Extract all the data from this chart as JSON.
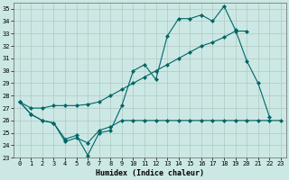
{
  "xlabel": "Humidex (Indice chaleur)",
  "bg_color": "#cce8e4",
  "grid_color": "#b0c8c4",
  "line_color": "#006666",
  "xlim": [
    -0.5,
    23.5
  ],
  "ylim": [
    23,
    35.5
  ],
  "yticks": [
    23,
    24,
    25,
    26,
    27,
    28,
    29,
    30,
    31,
    32,
    33,
    34,
    35
  ],
  "xticks": [
    0,
    1,
    2,
    3,
    4,
    5,
    6,
    7,
    8,
    9,
    10,
    11,
    12,
    13,
    14,
    15,
    16,
    17,
    18,
    19,
    20,
    21,
    22,
    23
  ],
  "series": [
    {
      "x": [
        0,
        1,
        2,
        3,
        4,
        5,
        6,
        7,
        8,
        9,
        10,
        11,
        12,
        13,
        14,
        15,
        16,
        17,
        18,
        19,
        20,
        21,
        22
      ],
      "y": [
        27.5,
        26.5,
        26.0,
        25.8,
        24.5,
        24.8,
        23.2,
        25.0,
        25.2,
        27.2,
        30.0,
        30.5,
        29.3,
        32.8,
        34.2,
        34.2,
        34.5,
        34.0,
        35.2,
        33.3,
        30.8,
        29.0,
        26.3
      ]
    },
    {
      "x": [
        0,
        1,
        2,
        3,
        4,
        5,
        6,
        7,
        8,
        9,
        10,
        11,
        12,
        13,
        14,
        15,
        16,
        17,
        18,
        19,
        20,
        21,
        22,
        23
      ],
      "y": [
        27.5,
        26.5,
        26.0,
        25.8,
        24.3,
        24.6,
        24.2,
        25.2,
        25.5,
        26.0,
        26.0,
        26.0,
        26.0,
        26.0,
        26.0,
        26.0,
        26.0,
        26.0,
        26.0,
        26.0,
        26.0,
        26.0,
        26.0,
        26.0
      ]
    },
    {
      "x": [
        0,
        1,
        2,
        3,
        4,
        5,
        6,
        7,
        8,
        9,
        10,
        11,
        12,
        13,
        14,
        15,
        16,
        17,
        18,
        19,
        20
      ],
      "y": [
        27.5,
        27.0,
        27.0,
        27.2,
        27.2,
        27.2,
        27.3,
        27.5,
        28.0,
        28.5,
        29.0,
        29.5,
        30.0,
        30.5,
        31.0,
        31.5,
        32.0,
        32.3,
        32.7,
        33.2,
        33.2
      ]
    }
  ]
}
